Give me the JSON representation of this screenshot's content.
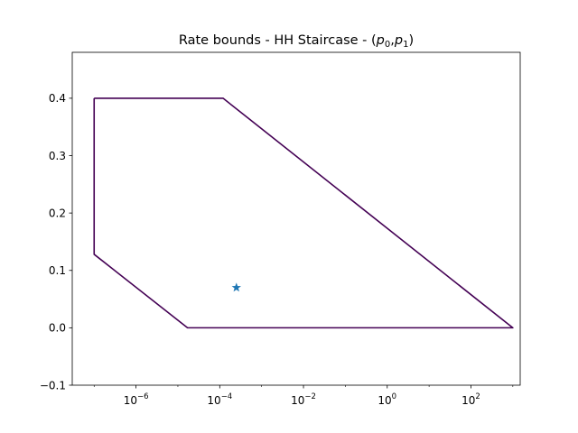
{
  "chart_data": {
    "type": "line",
    "title": {
      "prefix": "Rate bounds - HH Staircase - (",
      "var0": "p",
      "sub0": "0",
      "sep": ",",
      "var1": "p",
      "sub1": "1",
      "suffix": ")"
    },
    "xlabel": "",
    "ylabel": "",
    "x_scale": "log",
    "xlim": [
      3e-08,
      1500
    ],
    "ylim": [
      -0.1,
      0.48
    ],
    "grid": false,
    "x_ticks": [
      {
        "value": 1e-06,
        "base": "10",
        "exp": "−6"
      },
      {
        "value": 0.0001,
        "base": "10",
        "exp": "−4"
      },
      {
        "value": 0.01,
        "base": "10",
        "exp": "−2"
      },
      {
        "value": 1,
        "base": "10",
        "exp": "0"
      },
      {
        "value": 100,
        "base": "10",
        "exp": "2"
      }
    ],
    "y_ticks": [
      {
        "value": -0.1,
        "label": "−0.1"
      },
      {
        "value": 0.0,
        "label": "0.0"
      },
      {
        "value": 0.1,
        "label": "0.1"
      },
      {
        "value": 0.2,
        "label": "0.2"
      },
      {
        "value": 0.3,
        "label": "0.3"
      },
      {
        "value": 0.4,
        "label": "0.4"
      }
    ],
    "series": [
      {
        "kind": "line",
        "color": "#440154",
        "points": [
          [
            1e-07,
            0.4
          ],
          [
            0.00012,
            0.4
          ],
          [
            1000,
            0.0
          ],
          [
            1.7e-05,
            0.0
          ],
          [
            1e-07,
            0.128
          ],
          [
            1e-07,
            0.4
          ]
        ]
      },
      {
        "kind": "marker",
        "marker": "star",
        "color": "#1f77b4",
        "points": [
          [
            0.00025,
            0.07
          ]
        ]
      }
    ]
  }
}
